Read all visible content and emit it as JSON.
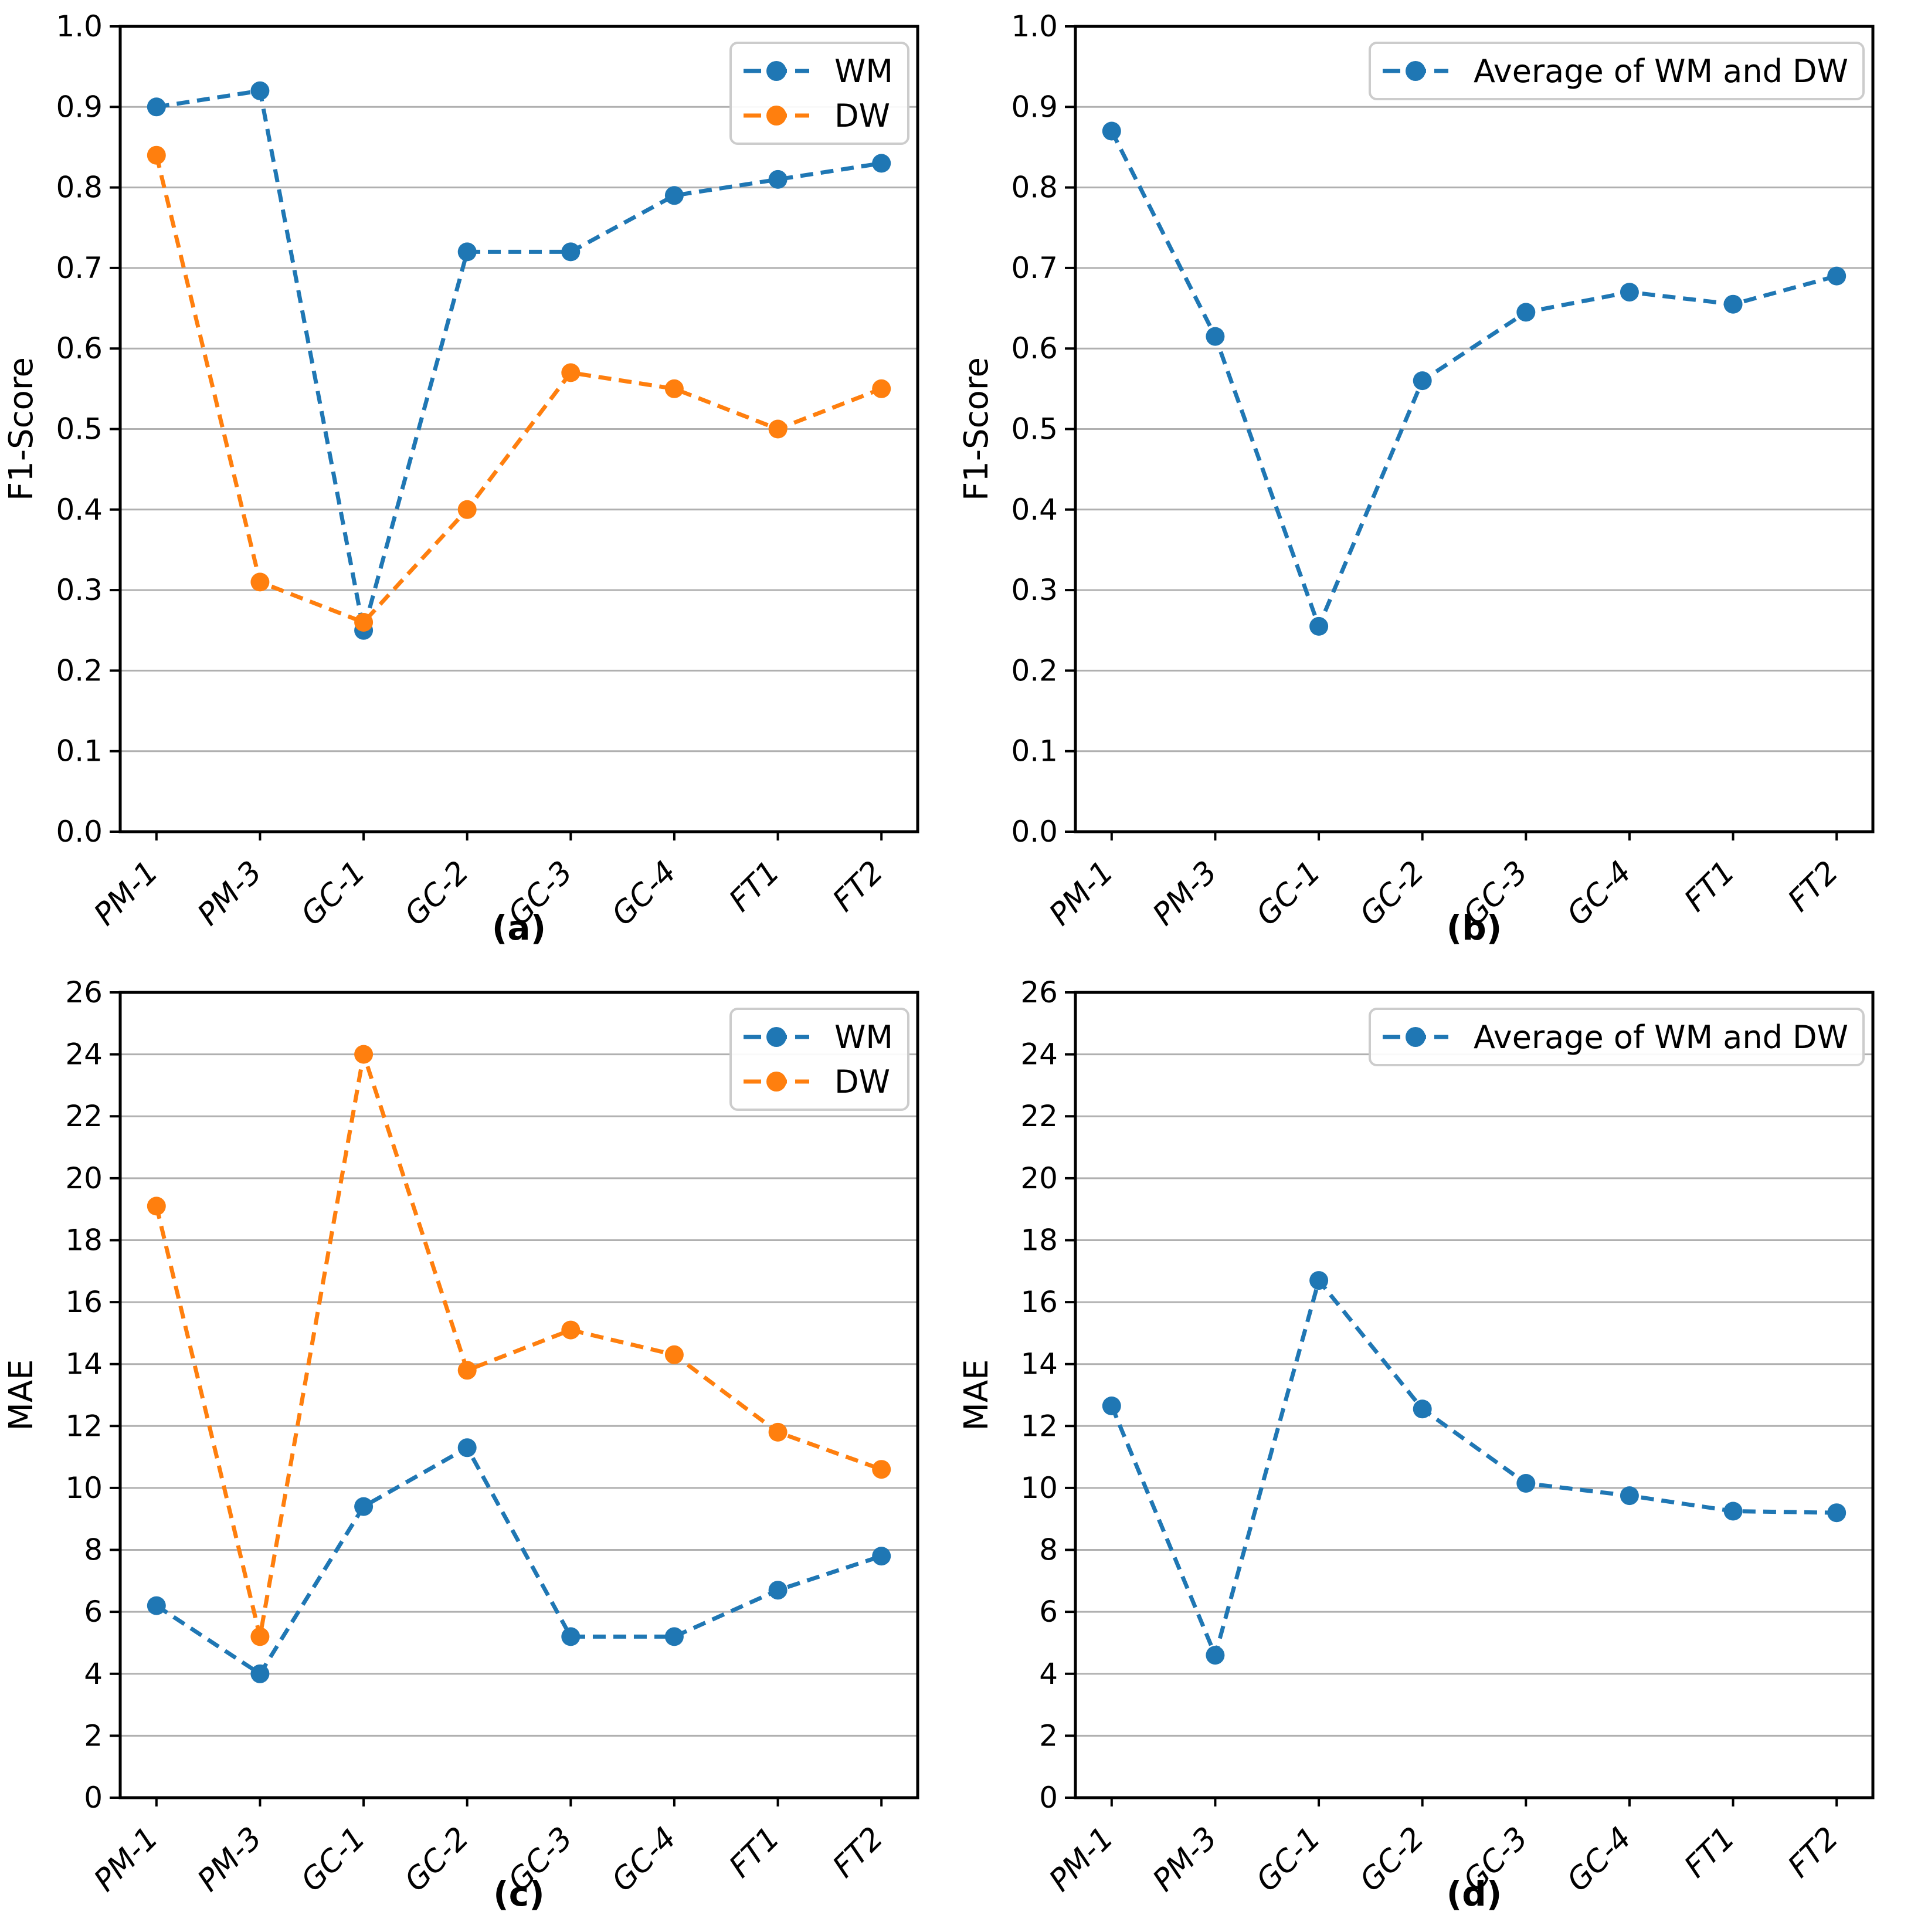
{
  "figure": {
    "background": "#ffffff",
    "colors": {
      "wm": "#1f77b4",
      "dw": "#ff7f0e",
      "gridline": "#b0b0b0",
      "spine": "#000000",
      "text": "#000000",
      "legend_border": "#cccccc",
      "legend_background": "#ffffff"
    }
  },
  "chart_data": [
    {
      "id": "a",
      "type": "line",
      "caption": "(a)",
      "title": "",
      "xlabel": "",
      "ylabel": "F1-Score",
      "ylim": [
        0.0,
        1.0
      ],
      "ytick_step": 0.1,
      "ytick_decimals": 1,
      "grid": true,
      "legend_position": "top-right",
      "line_style": "dashed",
      "marker": "circle",
      "categories": [
        "PM-1",
        "PM-3",
        "GC-1",
        "GC-2",
        "GC-3",
        "GC-4",
        "FT1",
        "FT2"
      ],
      "series": [
        {
          "name": "WM",
          "color_key": "wm",
          "values": [
            0.9,
            0.92,
            0.25,
            0.72,
            0.72,
            0.79,
            0.81,
            0.83
          ]
        },
        {
          "name": "DW",
          "color_key": "dw",
          "values": [
            0.84,
            0.31,
            0.26,
            0.4,
            0.57,
            0.55,
            0.5,
            0.55
          ]
        }
      ]
    },
    {
      "id": "b",
      "type": "line",
      "caption": "(b)",
      "title": "",
      "xlabel": "",
      "ylabel": "F1-Score",
      "ylim": [
        0.0,
        1.0
      ],
      "ytick_step": 0.1,
      "ytick_decimals": 1,
      "grid": true,
      "legend_position": "top-right",
      "line_style": "dashed",
      "marker": "circle",
      "categories": [
        "PM-1",
        "PM-3",
        "GC-1",
        "GC-2",
        "GC-3",
        "GC-4",
        "FT1",
        "FT2"
      ],
      "series": [
        {
          "name": "Average of WM and DW",
          "color_key": "wm",
          "values": [
            0.87,
            0.615,
            0.255,
            0.56,
            0.645,
            0.67,
            0.655,
            0.69
          ]
        }
      ]
    },
    {
      "id": "c",
      "type": "line",
      "caption": "(c)",
      "title": "",
      "xlabel": "",
      "ylabel": "MAE",
      "ylim": [
        0,
        26
      ],
      "ytick_step": 2,
      "ytick_decimals": 0,
      "grid": true,
      "legend_position": "top-right",
      "line_style": "dashed",
      "marker": "circle",
      "categories": [
        "PM-1",
        "PM-3",
        "GC-1",
        "GC-2",
        "GC-3",
        "GC-4",
        "FT1",
        "FT2"
      ],
      "series": [
        {
          "name": "WM",
          "color_key": "wm",
          "values": [
            6.2,
            4.0,
            9.4,
            11.3,
            5.2,
            5.2,
            6.7,
            7.8
          ]
        },
        {
          "name": "DW",
          "color_key": "dw",
          "values": [
            19.1,
            5.2,
            24.0,
            13.8,
            15.1,
            14.3,
            11.8,
            10.6
          ]
        }
      ]
    },
    {
      "id": "d",
      "type": "line",
      "caption": "(d)",
      "title": "",
      "xlabel": "",
      "ylabel": "MAE",
      "ylim": [
        0,
        26
      ],
      "ytick_step": 2,
      "ytick_decimals": 0,
      "grid": true,
      "legend_position": "top-right",
      "line_style": "dashed",
      "marker": "circle",
      "categories": [
        "PM-1",
        "PM-3",
        "GC-1",
        "GC-2",
        "GC-3",
        "GC-4",
        "FT1",
        "FT2"
      ],
      "series": [
        {
          "name": "Average of WM and DW",
          "color_key": "wm",
          "values": [
            12.65,
            4.6,
            16.7,
            12.55,
            10.15,
            9.75,
            9.25,
            9.2
          ]
        }
      ]
    }
  ]
}
